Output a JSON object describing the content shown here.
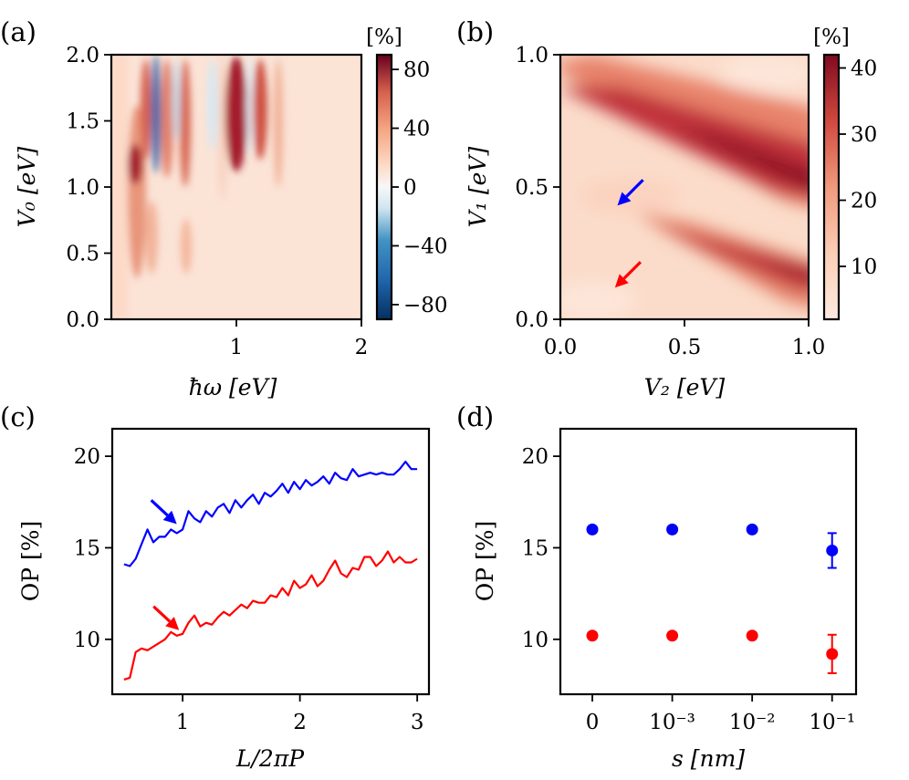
{
  "chart_data": [
    {
      "id": "a",
      "type": "heatmap",
      "panel_label": "(a)",
      "xlabel": "ħω [eV]",
      "ylabel": "V₀ [eV]",
      "xlim": [
        0.0,
        2.0
      ],
      "ylim": [
        0.0,
        2.0
      ],
      "xticks": [
        1,
        2
      ],
      "xtick_labels": [
        "1",
        "2"
      ],
      "yticks": [
        0.0,
        0.5,
        1.0,
        1.5,
        2.0
      ],
      "ytick_labels": [
        "0.0",
        "0.5",
        "1.0",
        "1.5",
        "2.0"
      ],
      "colorbar": {
        "title": "[%]",
        "range": [
          -90,
          90
        ],
        "ticks": [
          -80,
          -40,
          0,
          40,
          80
        ],
        "tick_labels": [
          "−80",
          "−40",
          "0",
          "40",
          "80"
        ],
        "colormap": "RdBu_r"
      },
      "features": [
        {
          "x": 0.32,
          "y": 1.05,
          "value": 75
        },
        {
          "x": 0.37,
          "y": 1.55,
          "value": 50
        },
        {
          "x": 0.42,
          "y": 1.5,
          "value": -75
        },
        {
          "x": 1.05,
          "y": 1.55,
          "value": 80
        },
        {
          "x": 1.25,
          "y": 1.55,
          "value": 55
        },
        {
          "x": 0.85,
          "y": 1.5,
          "value": -30
        },
        {
          "x": 1.15,
          "y": 1.6,
          "value": -20
        },
        {
          "x": 0.25,
          "y": 0.6,
          "value": 45
        },
        {
          "x": 1.0,
          "y": 0.7,
          "value": 20
        }
      ]
    },
    {
      "id": "b",
      "type": "heatmap",
      "panel_label": "(b)",
      "xlabel": "V₂ [eV]",
      "ylabel": "V₁ [eV]",
      "xlim": [
        0.0,
        1.0
      ],
      "ylim": [
        0.0,
        1.0
      ],
      "xticks": [
        0.0,
        0.5,
        1.0
      ],
      "xtick_labels": [
        "0.0",
        "0.5",
        "1.0"
      ],
      "yticks": [
        0.0,
        0.5,
        1.0
      ],
      "ytick_labels": [
        "0.0",
        "0.5",
        "1.0"
      ],
      "colorbar": {
        "title": "[%]",
        "range": [
          2,
          42
        ],
        "ticks": [
          10,
          20,
          30,
          40
        ],
        "tick_labels": [
          "10",
          "20",
          "30",
          "40"
        ],
        "colormap": "Reds"
      },
      "bands": [
        {
          "from": [
            0.0,
            0.85
          ],
          "to": [
            1.0,
            0.55
          ],
          "peak": 40
        },
        {
          "from": [
            0.3,
            0.4
          ],
          "to": [
            1.0,
            0.15
          ],
          "peak": 37
        }
      ],
      "arrows": [
        {
          "color": "#0000ff",
          "tip": [
            0.23,
            0.43
          ]
        },
        {
          "color": "#ff0000",
          "tip": [
            0.22,
            0.12
          ]
        }
      ]
    },
    {
      "id": "c",
      "type": "line",
      "panel_label": "(c)",
      "xlabel": "L/2πP",
      "ylabel": "OP [%]",
      "xlim": [
        0.4,
        3.1
      ],
      "ylim": [
        7.0,
        21.5
      ],
      "xticks": [
        1,
        2,
        3
      ],
      "xtick_labels": [
        "1",
        "2",
        "3"
      ],
      "yticks": [
        10,
        15,
        20
      ],
      "ytick_labels": [
        "10",
        "15",
        "20"
      ],
      "series": [
        {
          "name": "blue",
          "color": "#0000ff",
          "x": [
            0.5,
            0.55,
            0.6,
            0.65,
            0.7,
            0.75,
            0.8,
            0.85,
            0.9,
            0.95,
            1.0,
            1.05,
            1.1,
            1.15,
            1.2,
            1.25,
            1.3,
            1.35,
            1.4,
            1.45,
            1.5,
            1.55,
            1.6,
            1.65,
            1.7,
            1.75,
            1.8,
            1.85,
            1.9,
            1.95,
            2.0,
            2.05,
            2.1,
            2.15,
            2.2,
            2.25,
            2.3,
            2.35,
            2.4,
            2.45,
            2.5,
            2.55,
            2.6,
            2.65,
            2.7,
            2.75,
            2.8,
            2.85,
            2.9,
            2.95,
            3.0
          ],
          "y": [
            14.1,
            14.0,
            14.4,
            15.2,
            16.0,
            15.3,
            15.6,
            15.6,
            16.0,
            15.8,
            16.0,
            17.0,
            16.6,
            16.4,
            17.0,
            16.7,
            17.2,
            17.4,
            16.9,
            17.6,
            17.2,
            17.6,
            17.9,
            17.4,
            18.0,
            17.8,
            18.1,
            18.5,
            18.0,
            18.6,
            18.2,
            18.7,
            18.4,
            18.6,
            18.9,
            18.5,
            19.1,
            18.8,
            18.7,
            19.3,
            18.9,
            19.0,
            19.1,
            19.0,
            19.1,
            19.0,
            19.0,
            19.3,
            19.7,
            19.3,
            19.3
          ]
        },
        {
          "name": "red",
          "color": "#ff0000",
          "x": [
            0.5,
            0.55,
            0.6,
            0.65,
            0.7,
            0.75,
            0.8,
            0.85,
            0.9,
            0.95,
            1.0,
            1.05,
            1.1,
            1.15,
            1.2,
            1.25,
            1.3,
            1.35,
            1.4,
            1.45,
            1.5,
            1.55,
            1.6,
            1.65,
            1.7,
            1.75,
            1.8,
            1.85,
            1.9,
            1.95,
            2.0,
            2.05,
            2.1,
            2.15,
            2.2,
            2.25,
            2.3,
            2.35,
            2.4,
            2.45,
            2.5,
            2.55,
            2.6,
            2.65,
            2.7,
            2.75,
            2.8,
            2.85,
            2.9,
            2.95,
            3.0
          ],
          "y": [
            7.8,
            7.9,
            9.3,
            9.5,
            9.4,
            9.6,
            9.8,
            10.0,
            10.4,
            10.2,
            10.3,
            10.9,
            11.3,
            10.7,
            10.9,
            10.8,
            11.2,
            11.5,
            11.3,
            11.6,
            11.9,
            11.7,
            12.1,
            12.0,
            12.0,
            12.4,
            12.3,
            12.8,
            12.4,
            13.2,
            12.8,
            13.0,
            13.5,
            12.9,
            13.2,
            13.8,
            14.3,
            13.6,
            13.4,
            13.9,
            13.8,
            14.5,
            14.5,
            14.0,
            14.3,
            14.8,
            14.2,
            14.5,
            14.2,
            14.2,
            14.4
          ]
        }
      ],
      "arrows": [
        {
          "color": "#0000ff",
          "tip": [
            0.95,
            16.3
          ]
        },
        {
          "color": "#ff0000",
          "tip": [
            0.97,
            10.5
          ]
        }
      ]
    },
    {
      "id": "d",
      "type": "scatter",
      "panel_label": "(d)",
      "xlabel": "s [nm]",
      "ylabel": "OP [%]",
      "xlim": [
        -0.4,
        3.3
      ],
      "ylim": [
        7.0,
        21.5
      ],
      "categories": [
        "0",
        "10⁻³",
        "10⁻²",
        "10⁻¹"
      ],
      "xticks": [
        0,
        1,
        2,
        3
      ],
      "yticks": [
        10,
        15,
        20
      ],
      "ytick_labels": [
        "10",
        "15",
        "20"
      ],
      "series": [
        {
          "name": "blue",
          "color": "#0000ff",
          "values": [
            16.0,
            16.0,
            16.0,
            14.85
          ],
          "errors": [
            0,
            0,
            0,
            0.95
          ]
        },
        {
          "name": "red",
          "color": "#ff0000",
          "values": [
            10.2,
            10.2,
            10.2,
            9.2
          ],
          "errors": [
            0,
            0,
            0,
            1.05
          ]
        }
      ]
    }
  ]
}
